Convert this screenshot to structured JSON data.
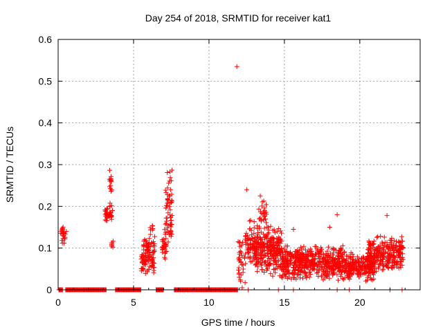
{
  "chart_data": {
    "type": "scatter",
    "title": "Day 254 of 2018, SRMTID for receiver kat1",
    "xlabel": "GPS time / hours",
    "ylabel": "SRMTID / TECUs",
    "xlim": [
      0,
      24
    ],
    "ylim": [
      0,
      0.6
    ],
    "x_ticks": [
      0,
      5,
      10,
      15,
      20
    ],
    "x_tick_labels": [
      "0",
      "5",
      "10",
      "15",
      "20"
    ],
    "y_ticks": [
      0,
      0.1,
      0.2,
      0.3,
      0.4,
      0.5,
      0.6
    ],
    "y_tick_labels": [
      "0",
      "0.1",
      "0.2",
      "0.3",
      "0.4",
      "0.5",
      "0.6"
    ],
    "grid": true,
    "legend": "none",
    "marker": "+",
    "series_color": "#ff0000",
    "series": [
      {
        "name": "SRMTID",
        "clusters": [
          {
            "x_start": 0.15,
            "x_end": 0.55,
            "y_min": 0.1,
            "y_max": 0.165,
            "density": 22
          },
          {
            "x_start": 3.1,
            "x_end": 3.6,
            "y_min": 0.16,
            "y_max": 0.21,
            "density": 40
          },
          {
            "x_start": 3.4,
            "x_end": 3.55,
            "y_min": 0.22,
            "y_max": 0.31,
            "density": 14
          },
          {
            "x_start": 3.55,
            "x_end": 3.7,
            "y_min": 0.1,
            "y_max": 0.12,
            "density": 6
          },
          {
            "x_start": 5.5,
            "x_end": 6.4,
            "y_min": 0.03,
            "y_max": 0.13,
            "density": 110
          },
          {
            "x_start": 6.1,
            "x_end": 6.4,
            "y_min": 0.12,
            "y_max": 0.16,
            "density": 8
          },
          {
            "x_start": 6.9,
            "x_end": 7.2,
            "y_min": 0.06,
            "y_max": 0.15,
            "density": 30
          },
          {
            "x_start": 7.1,
            "x_end": 7.6,
            "y_min": 0.1,
            "y_max": 0.3,
            "density": 60
          },
          {
            "x_start": 11.9,
            "x_end": 12.4,
            "y_min": 0.01,
            "y_max": 0.12,
            "density": 30
          },
          {
            "x_start": 12.4,
            "x_end": 13.0,
            "y_min": 0.05,
            "y_max": 0.17,
            "density": 60
          },
          {
            "x_start": 13.0,
            "x_end": 14.8,
            "y_min": 0.03,
            "y_max": 0.16,
            "density": 260
          },
          {
            "x_start": 13.3,
            "x_end": 13.8,
            "y_min": 0.14,
            "y_max": 0.225,
            "density": 25
          },
          {
            "x_start": 14.8,
            "x_end": 19.0,
            "y_min": 0.02,
            "y_max": 0.11,
            "density": 520
          },
          {
            "x_start": 19.0,
            "x_end": 21.0,
            "y_min": 0.02,
            "y_max": 0.09,
            "density": 220
          },
          {
            "x_start": 20.5,
            "x_end": 22.9,
            "y_min": 0.04,
            "y_max": 0.13,
            "density": 260
          }
        ],
        "outliers": [
          {
            "x": 11.85,
            "y": 0.535
          },
          {
            "x": 12.5,
            "y": 0.24
          },
          {
            "x": 13.4,
            "y": 0.225
          },
          {
            "x": 21.8,
            "y": 0.178
          },
          {
            "x": 18.5,
            "y": 0.18
          },
          {
            "x": 15.6,
            "y": 0.145
          },
          {
            "x": 18.0,
            "y": 0.15
          },
          {
            "x": 12.2,
            "y": 0.005
          },
          {
            "x": 12.1,
            "y": 0.02
          },
          {
            "x": 12.0,
            "y": 0.03
          }
        ],
        "zero_segments": [
          [
            0.05,
            0.3
          ],
          [
            0.5,
            3.2
          ],
          [
            3.8,
            5.5
          ],
          [
            6.5,
            7.0
          ],
          [
            7.7,
            11.9
          ]
        ],
        "zero_points": [
          12.6,
          14.6,
          15.6,
          18.5,
          19.3,
          22.0,
          22.8
        ]
      }
    ]
  }
}
